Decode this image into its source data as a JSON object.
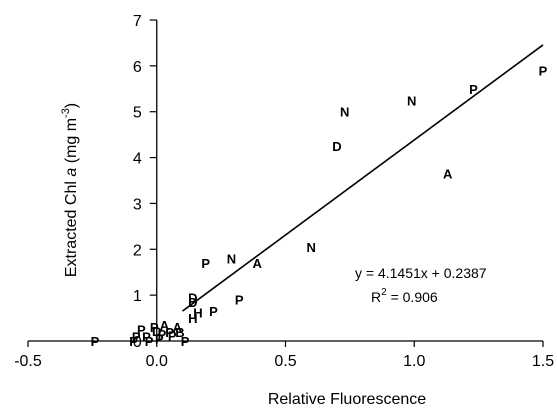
{
  "chart_data": {
    "type": "scatter",
    "xlabel": "Relative Fluorescence",
    "ylabel_parts": [
      "Extracted Chl ",
      "a",
      " (mg m",
      "-3",
      ")"
    ],
    "xlim": [
      -0.5,
      1.5
    ],
    "ylim": [
      0,
      7
    ],
    "x_ticks": [
      "-0.5",
      "0.0",
      "0.5",
      "1.0",
      "1.5"
    ],
    "y_ticks": [
      "0",
      "1",
      "2",
      "3",
      "4",
      "5",
      "6",
      "7"
    ],
    "points": [
      {
        "label": "P",
        "x": 1.5,
        "y": 5.9
      },
      {
        "label": "P",
        "x": 1.23,
        "y": 5.5
      },
      {
        "label": "N",
        "x": 0.99,
        "y": 5.25
      },
      {
        "label": "N",
        "x": 0.73,
        "y": 5.0
      },
      {
        "label": "D",
        "x": 0.7,
        "y": 4.25
      },
      {
        "label": "A",
        "x": 1.13,
        "y": 3.65
      },
      {
        "label": "N",
        "x": 0.6,
        "y": 2.05
      },
      {
        "label": "A",
        "x": 0.39,
        "y": 1.7
      },
      {
        "label": "N",
        "x": 0.29,
        "y": 1.8
      },
      {
        "label": "P",
        "x": 0.19,
        "y": 1.7
      },
      {
        "label": "P",
        "x": 0.32,
        "y": 0.9
      },
      {
        "label": "P",
        "x": 0.22,
        "y": 0.65
      },
      {
        "label": "D",
        "x": 0.14,
        "y": 0.95
      },
      {
        "label": "D",
        "x": 0.14,
        "y": 0.85
      },
      {
        "label": "H",
        "x": 0.16,
        "y": 0.62
      },
      {
        "label": "H",
        "x": 0.14,
        "y": 0.5
      },
      {
        "label": "A",
        "x": 0.03,
        "y": 0.35
      },
      {
        "label": "A",
        "x": 0.08,
        "y": 0.3
      },
      {
        "label": "B",
        "x": 0.09,
        "y": 0.2
      },
      {
        "label": "P",
        "x": 0.05,
        "y": 0.2
      },
      {
        "label": "P",
        "x": -0.01,
        "y": 0.3
      },
      {
        "label": "P",
        "x": -0.06,
        "y": 0.25
      },
      {
        "label": "P",
        "x": 0.02,
        "y": 0.15
      },
      {
        "label": "P",
        "x": -0.04,
        "y": 0.1
      },
      {
        "label": "P",
        "x": 0.01,
        "y": 0.05
      },
      {
        "label": "P",
        "x": -0.08,
        "y": 0.1
      },
      {
        "label": "P",
        "x": -0.09,
        "y": 0.0
      },
      {
        "label": "P",
        "x": -0.03,
        "y": 0.0
      },
      {
        "label": "P",
        "x": 0.11,
        "y": 0.0
      },
      {
        "label": "P",
        "x": -0.24,
        "y": 0.0
      },
      {
        "label": "P",
        "x": 0.06,
        "y": 0.12
      },
      {
        "label": "D",
        "x": 0.0,
        "y": 0.22
      }
    ],
    "fit": {
      "slope": 4.1451,
      "intercept": 0.2387,
      "x_range": [
        0.1,
        1.5
      ]
    },
    "equation": "y = 4.1451x + 0.2387",
    "r2_parts": [
      "R",
      "2",
      " = 0.906"
    ]
  }
}
